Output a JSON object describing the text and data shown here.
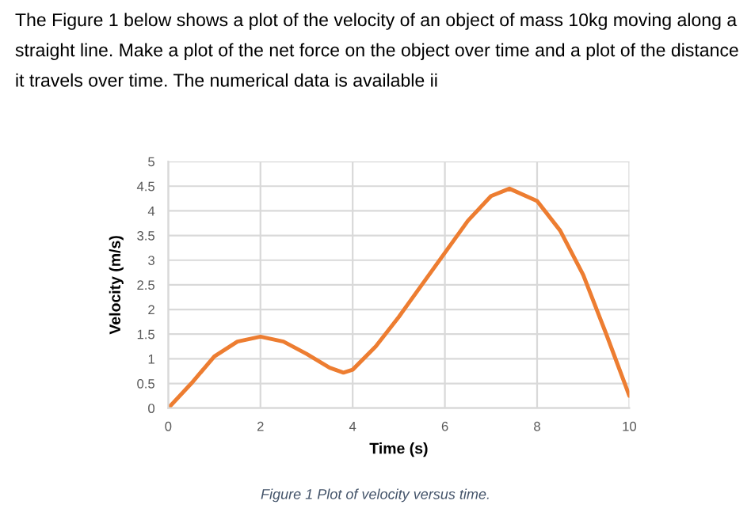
{
  "chart_data": {
    "type": "line",
    "xlabel": "Time (s)",
    "ylabel": "Velocity (m/s)",
    "annotations": [
      "The Figure 1 below shows a plot of the velocity of an object of mass 10kg moving along a straight line. Make a plot of the net force on the object over time and a plot of the distance it travels over time. The numerical data is available ii",
      "Figure 1 Plot of velocity versus time."
    ],
    "x": [
      0,
      0.5,
      1,
      1.5,
      2,
      2.5,
      3,
      3.5,
      3.8,
      4,
      4.5,
      5,
      5.5,
      6,
      6.5,
      7,
      7.4,
      8,
      8.5,
      9,
      9.5,
      10
    ],
    "series": [
      {
        "color": "#ed7d31",
        "values": [
          0,
          0.5,
          1.05,
          1.35,
          1.45,
          1.35,
          1.1,
          0.82,
          0.72,
          0.78,
          1.25,
          1.85,
          2.5,
          3.15,
          3.8,
          4.3,
          4.45,
          4.2,
          3.6,
          2.7,
          1.5,
          0.25
        ]
      }
    ],
    "xlim": [
      0,
      10
    ],
    "ylim": [
      0,
      5
    ],
    "xticks": [
      0,
      2,
      4,
      6,
      8,
      10
    ],
    "yticks": [
      0,
      0.5,
      1,
      1.5,
      2,
      2.5,
      3,
      3.5,
      4,
      4.5,
      5
    ],
    "grid": true,
    "legend": false
  }
}
